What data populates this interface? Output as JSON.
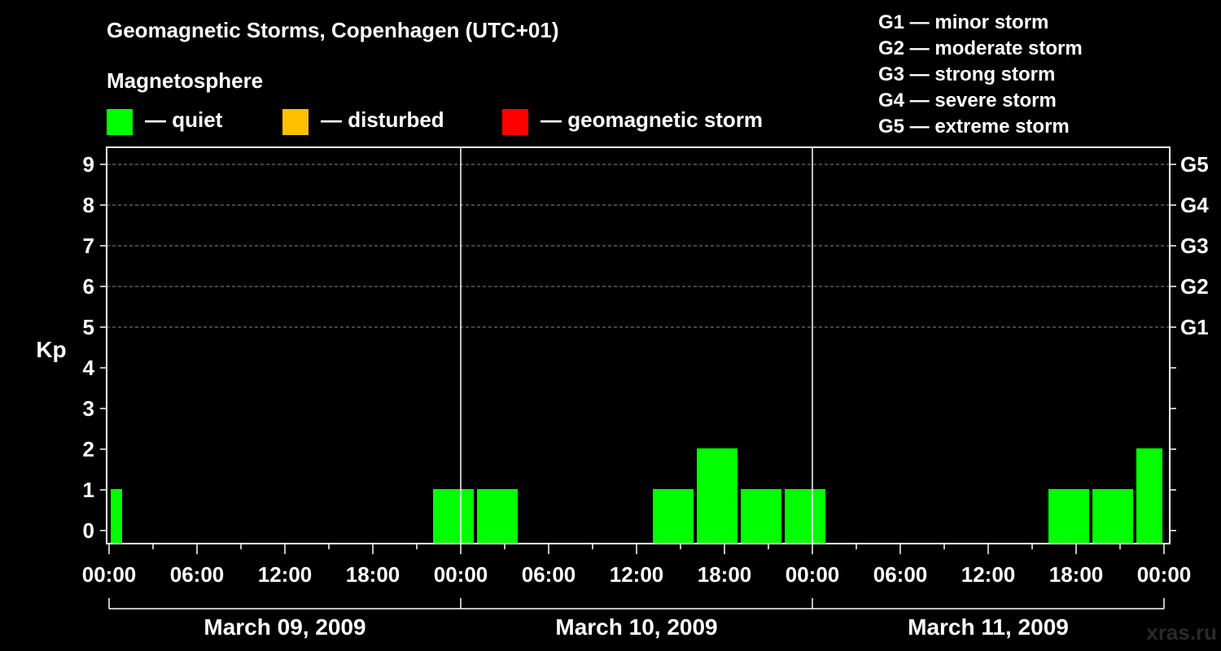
{
  "chart_data": {
    "type": "bar",
    "title": "Geomagnetic Storms, Copenhagen (UTC+01)",
    "subtitle": "Magnetosphere",
    "ylabel": "Kp",
    "ylim": [
      0,
      9
    ],
    "yticks": [
      "0",
      "1",
      "2",
      "3",
      "4",
      "5",
      "6",
      "7",
      "8",
      "9"
    ],
    "storm_levels": [
      {
        "kp": 5,
        "label": "G1"
      },
      {
        "kp": 6,
        "label": "G2"
      },
      {
        "kp": 7,
        "label": "G3"
      },
      {
        "kp": 8,
        "label": "G4"
      },
      {
        "kp": 9,
        "label": "G5"
      }
    ],
    "xlim_hours": [
      0,
      72
    ],
    "xtick_labels": [
      "00:00",
      "06:00",
      "12:00",
      "18:00",
      "00:00",
      "06:00",
      "12:00",
      "18:00",
      "00:00",
      "06:00",
      "12:00",
      "18:00",
      "00:00"
    ],
    "days": [
      "March 09, 2009",
      "March 10, 2009",
      "March 11, 2009"
    ],
    "bars": [
      {
        "start_h": 0,
        "end_h": 1,
        "kp": 1,
        "status": "quiet"
      },
      {
        "start_h": 22,
        "end_h": 25,
        "kp": 1,
        "status": "quiet"
      },
      {
        "start_h": 25,
        "end_h": 28,
        "kp": 1,
        "status": "quiet"
      },
      {
        "start_h": 37,
        "end_h": 40,
        "kp": 1,
        "status": "quiet"
      },
      {
        "start_h": 40,
        "end_h": 43,
        "kp": 2,
        "status": "quiet"
      },
      {
        "start_h": 43,
        "end_h": 46,
        "kp": 1,
        "status": "quiet"
      },
      {
        "start_h": 46,
        "end_h": 49,
        "kp": 1,
        "status": "quiet"
      },
      {
        "start_h": 64,
        "end_h": 67,
        "kp": 1,
        "status": "quiet"
      },
      {
        "start_h": 67,
        "end_h": 70,
        "kp": 1,
        "status": "quiet"
      },
      {
        "start_h": 70,
        "end_h": 72,
        "kp": 2,
        "status": "quiet"
      }
    ]
  },
  "legend": {
    "quiet": {
      "label": "— quiet",
      "color": "#00ff00"
    },
    "disturbed": {
      "label": "— disturbed",
      "color": "#ffc000"
    },
    "storm": {
      "label": "— geomagnetic storm",
      "color": "#ff0000"
    }
  },
  "scale": [
    "G1 — minor storm",
    "G2 — moderate storm",
    "G3 — strong storm",
    "G4 — severe storm",
    "G5 — extreme storm"
  ],
  "watermark": "xras.ru"
}
